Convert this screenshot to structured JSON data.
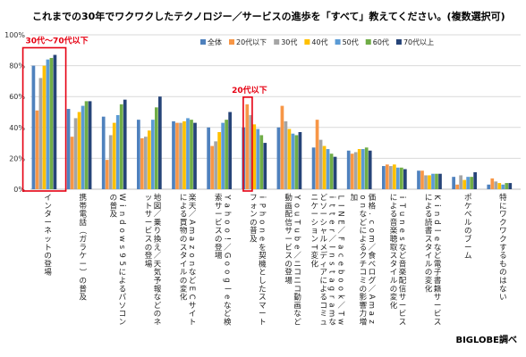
{
  "chart_data": {
    "type": "bar",
    "title": "これまでの30年でワクワクしたテクノロジー／サービスの進歩を「すべて」教えてください。(複数選択可)",
    "ylim": [
      0,
      100
    ],
    "yticks": [
      "0%",
      "20%",
      "40%",
      "60%",
      "80%",
      "100%"
    ],
    "ytick_values": [
      0,
      20,
      40,
      60,
      80,
      100
    ],
    "legend_position": "top-right",
    "grid": true,
    "categories": [
      "インターネットの登場",
      "携帯電話（ガラケー）の普及",
      "Windows95によるパソコンの普及",
      "地図／乗り換え／天気予報などのネットサービスの登場",
      "楽天／AmazonなどECサイトによる買物のスタイルの変化",
      "Yahoo!／Googleなど検索サービスの登場",
      "iPhoneを契機としたスマートフォンの普及",
      "YouTube／ニコニコ動画など動画配信サービスの登場",
      "LINE／Facebook／Twitter／InstagramなどソーシャルメディアによるコミュニケーションT変化",
      "価格.com／食べログ／Amazonなどによるクチコミの影響力増加",
      "iTunesなど音楽配信サービスによる音楽聴取スタイルの変化",
      "Kindleなど電子書籍サービスによる読書スタイルの変化",
      "ポケベルのブーム",
      "特にワクワクするものはない"
    ],
    "series": [
      {
        "name": "全体",
        "color": "#4f81bd",
        "values": [
          80,
          52,
          47,
          45,
          44,
          40,
          40,
          40,
          27,
          25,
          15,
          12,
          8,
          3
        ]
      },
      {
        "name": "20代以下",
        "color": "#f79646",
        "values": [
          51,
          34,
          19,
          33,
          43,
          28,
          55,
          54,
          45,
          23,
          16,
          12,
          3,
          7
        ]
      },
      {
        "name": "30代",
        "color": "#a5a5a5",
        "values": [
          72,
          46,
          35,
          34,
          43,
          31,
          48,
          44,
          32,
          24,
          15,
          9,
          9,
          5
        ]
      },
      {
        "name": "40代",
        "color": "#ffc000",
        "values": [
          80,
          50,
          43,
          38,
          44,
          37,
          42,
          39,
          28,
          26,
          16,
          9,
          6,
          4
        ]
      },
      {
        "name": "50代",
        "color": "#5b9bd5",
        "values": [
          84,
          54,
          48,
          45,
          46,
          43,
          39,
          36,
          26,
          26,
          14,
          10,
          8,
          3
        ]
      },
      {
        "name": "60代",
        "color": "#70ad47",
        "values": [
          85,
          57,
          55,
          53,
          45,
          45,
          35,
          35,
          23,
          27,
          14,
          10,
          8,
          4
        ]
      },
      {
        "name": "70代以上",
        "color": "#264478",
        "values": [
          87,
          57,
          58,
          60,
          43,
          50,
          30,
          37,
          21,
          25,
          13,
          10,
          11,
          4
        ]
      }
    ],
    "annotations": [
      {
        "text": "30代〜70代以下",
        "category_index": 0,
        "color": "#e60012"
      },
      {
        "text": "20代以下",
        "category_index": 6,
        "color": "#e60012"
      }
    ],
    "source": "BIGLOBE調べ"
  }
}
